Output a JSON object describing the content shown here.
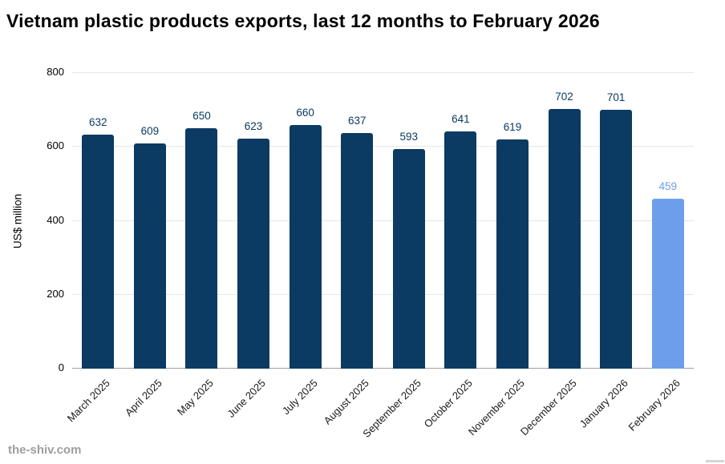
{
  "title": "Vietnam plastic products exports, last 12 months to February 2026",
  "source": "the-shiv.com",
  "chart_data": {
    "type": "bar",
    "title": "Vietnam plastic products exports, last 12 months to February 2026",
    "categories": [
      "March 2025",
      "April 2025",
      "May 2025",
      "June 2025",
      "July 2025",
      "August 2025",
      "September 2025",
      "October 2025",
      "November 2025",
      "December 2025",
      "January 2026",
      "February 2026"
    ],
    "values": [
      632,
      609,
      650,
      623,
      660,
      637,
      593,
      641,
      619,
      702,
      701,
      459
    ],
    "xlabel": "",
    "ylabel": "US$ million",
    "ylim": [
      0,
      800
    ],
    "yticks": [
      0,
      200,
      400,
      600,
      800
    ],
    "grid": true,
    "legend": "none",
    "highlight_index": 11,
    "colors": {
      "bar_default": "#0b3a63",
      "bar_highlight": "#6d9eeb",
      "value_label_default": "#0b3a63",
      "value_label_highlight": "#6d9eeb",
      "gridline": "#e6e6e6",
      "axis_line": "#9e9e9e"
    }
  }
}
